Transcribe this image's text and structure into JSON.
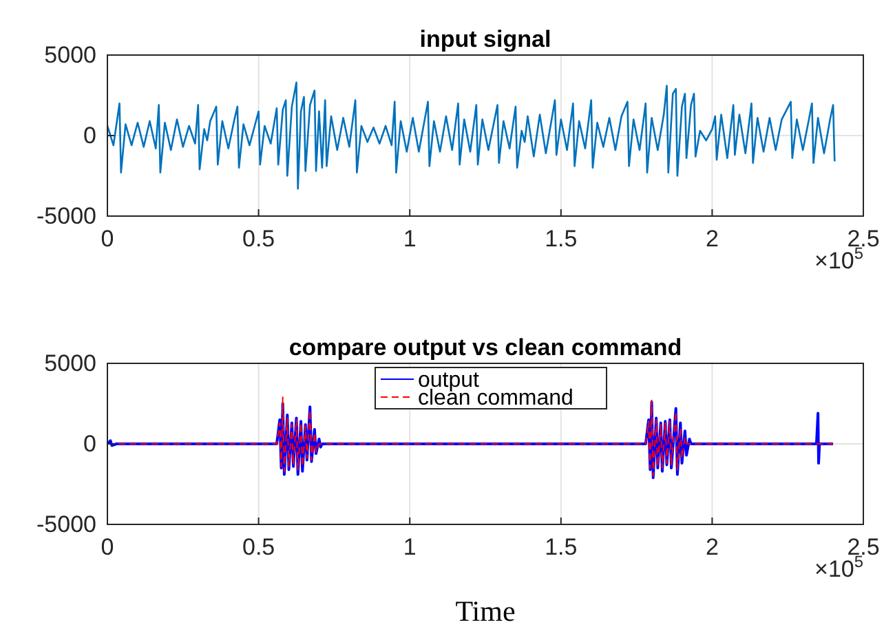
{
  "chart_data": [
    {
      "type": "line",
      "title": "input signal",
      "xlim": [
        0,
        2.5
      ],
      "ylim": [
        -5000,
        5000
      ],
      "xticks": [
        0,
        0.5,
        1,
        1.5,
        2,
        2.5
      ],
      "yticks": [
        -5000,
        0,
        5000
      ],
      "grid": true,
      "annotations": [
        "×10$^{5}$"
      ],
      "series": [
        {
          "color": "#0072bd",
          "x": [
            0,
            0.02,
            0.04,
            0.045,
            0.06,
            0.08,
            0.1,
            0.12,
            0.14,
            0.16,
            0.17,
            0.175,
            0.19,
            0.21,
            0.23,
            0.25,
            0.27,
            0.29,
            0.3,
            0.305,
            0.32,
            0.33,
            0.34,
            0.36,
            0.365,
            0.38,
            0.4,
            0.42,
            0.43,
            0.435,
            0.45,
            0.47,
            0.49,
            0.5,
            0.505,
            0.52,
            0.54,
            0.56,
            0.565,
            0.58,
            0.59,
            0.595,
            0.61,
            0.625,
            0.63,
            0.64,
            0.65,
            0.655,
            0.67,
            0.685,
            0.69,
            0.7,
            0.71,
            0.72,
            0.725,
            0.74,
            0.76,
            0.78,
            0.8,
            0.82,
            0.825,
            0.84,
            0.86,
            0.88,
            0.9,
            0.92,
            0.94,
            0.95,
            0.955,
            0.97,
            0.99,
            1.01,
            1.03,
            1.06,
            1.065,
            1.08,
            1.1,
            1.12,
            1.14,
            1.16,
            1.165,
            1.18,
            1.2,
            1.22,
            1.225,
            1.24,
            1.26,
            1.29,
            1.295,
            1.31,
            1.33,
            1.35,
            1.355,
            1.37,
            1.38,
            1.39,
            1.41,
            1.43,
            1.45,
            1.48,
            1.485,
            1.5,
            1.52,
            1.54,
            1.545,
            1.56,
            1.58,
            1.6,
            1.605,
            1.62,
            1.64,
            1.66,
            1.68,
            1.7,
            1.72,
            1.725,
            1.74,
            1.76,
            1.78,
            1.785,
            1.8,
            1.82,
            1.84,
            1.85,
            1.855,
            1.87,
            1.88,
            1.885,
            1.9,
            1.91,
            1.915,
            1.93,
            1.94,
            1.945,
            1.96,
            1.98,
            2,
            2.01,
            2.015,
            2.03,
            2.05,
            2.07,
            2.075,
            2.09,
            2.11,
            2.13,
            2.135,
            2.15,
            2.17,
            2.19,
            2.21,
            2.23,
            2.26,
            2.265,
            2.28,
            2.3,
            2.32,
            2.33,
            2.335,
            2.35,
            2.37,
            2.39,
            2.4,
            2.405
          ],
          "values": [
            600,
            -600,
            2000,
            -2300,
            700,
            -600,
            800,
            -700,
            900,
            -800,
            1900,
            -2300,
            800,
            -900,
            1000,
            -700,
            600,
            -500,
            1900,
            -2100,
            400,
            -300,
            900,
            1800,
            -1800,
            900,
            -800,
            1000,
            1800,
            -2000,
            700,
            -600,
            800,
            1500,
            -1800,
            600,
            -500,
            1700,
            -1800,
            1600,
            2200,
            -2500,
            1800,
            3300,
            -3300,
            1500,
            2400,
            -2200,
            1900,
            2800,
            -2200,
            1500,
            -2000,
            2200,
            -1900,
            1200,
            -900,
            1100,
            -700,
            2200,
            -2300,
            600,
            -400,
            500,
            -500,
            600,
            -600,
            2100,
            -2300,
            900,
            -1000,
            1100,
            -1000,
            2100,
            -1900,
            900,
            -1000,
            1200,
            -900,
            2000,
            -1800,
            1000,
            -1000,
            1900,
            -1800,
            1000,
            -900,
            1900,
            -1700,
            900,
            -800,
            1800,
            -2000,
            300,
            -400,
            1200,
            -1300,
            1300,
            -1100,
            2200,
            -1200,
            1000,
            -900,
            2000,
            -1900,
            900,
            -800,
            2200,
            -2000,
            800,
            -700,
            1100,
            -900,
            1200,
            2100,
            -1900,
            1000,
            -900,
            2000,
            -2300,
            1100,
            -900,
            1300,
            3100,
            -2300,
            2600,
            2900,
            -2500,
            1800,
            2600,
            -1400,
            1900,
            2600,
            -1300,
            300,
            -300,
            400,
            1200,
            -1500,
            1300,
            -1400,
            1900,
            -1200,
            1300,
            -1100,
            2000,
            -1700,
            1100,
            -1000,
            1100,
            -900,
            1000,
            2100,
            -1400,
            1000,
            -900,
            1000,
            2000,
            -1700,
            1100,
            -1100,
            1000,
            1900,
            -1600
          ]
        }
      ]
    },
    {
      "type": "line",
      "title": "compare output vs clean command",
      "xlabel": "Time",
      "xlim": [
        0,
        2.5
      ],
      "ylim": [
        -5000,
        5000
      ],
      "xticks": [
        0,
        0.5,
        1,
        1.5,
        2,
        2.5
      ],
      "yticks": [
        -5000,
        0,
        5000
      ],
      "grid": true,
      "legend": "top",
      "annotations": [
        "×10$^{5}$"
      ],
      "series": [
        {
          "name": "output",
          "color": "#0000ff",
          "line_style": "solid",
          "x": [
            0,
            0.01,
            0.015,
            0.03,
            0.56,
            0.57,
            0.575,
            0.58,
            0.585,
            0.595,
            0.6,
            0.61,
            0.615,
            0.625,
            0.63,
            0.64,
            0.645,
            0.655,
            0.66,
            0.67,
            0.675,
            0.685,
            0.69,
            0.7,
            0.705,
            0.71,
            1.78,
            1.79,
            1.795,
            1.8,
            1.805,
            1.815,
            1.82,
            1.83,
            1.835,
            1.845,
            1.85,
            1.86,
            1.865,
            1.88,
            1.885,
            1.895,
            1.9,
            1.91,
            1.915,
            1.925,
            1.93,
            2.345,
            2.35,
            2.352,
            2.355,
            2.4
          ],
          "values": [
            0,
            200,
            -100,
            0,
            0,
            1500,
            -1500,
            2500,
            -1900,
            1800,
            -1600,
            1300,
            -1400,
            1600,
            -1900,
            1400,
            -1700,
            1200,
            -1000,
            2300,
            -1100,
            900,
            -600,
            300,
            -200,
            0,
            0,
            1500,
            -1600,
            2600,
            -2100,
            1600,
            -1500,
            1300,
            -1700,
            1400,
            -1300,
            1500,
            -1500,
            2200,
            -1900,
            1300,
            -1200,
            800,
            -700,
            300,
            0,
            0,
            1900,
            -1200,
            0,
            0
          ]
        },
        {
          "name": "clean command",
          "color": "#ff0000",
          "line_style": "dashed",
          "x": [
            0,
            0.56,
            0.57,
            0.575,
            0.58,
            0.585,
            0.595,
            0.6,
            0.61,
            0.615,
            0.625,
            0.63,
            0.64,
            0.645,
            0.655,
            0.66,
            0.67,
            0.675,
            0.685,
            0.69,
            0.7,
            1.78,
            1.79,
            1.795,
            1.8,
            1.805,
            1.815,
            1.82,
            1.83,
            1.835,
            1.845,
            1.85,
            1.86,
            1.865,
            1.88,
            1.885,
            1.895,
            1.9,
            1.91,
            1.915,
            2.4
          ],
          "values": [
            0,
            0,
            1300,
            -1400,
            2900,
            -1700,
            1600,
            -1400,
            1200,
            -1300,
            1500,
            -1600,
            1300,
            -1400,
            1100,
            -900,
            2100,
            -1000,
            700,
            -500,
            0,
            0,
            1400,
            -1500,
            2700,
            -2000,
            1500,
            -1400,
            1200,
            -1500,
            1300,
            -1200,
            1400,
            -1300,
            2000,
            -1600,
            1000,
            -900,
            400,
            0,
            0
          ]
        }
      ]
    }
  ]
}
